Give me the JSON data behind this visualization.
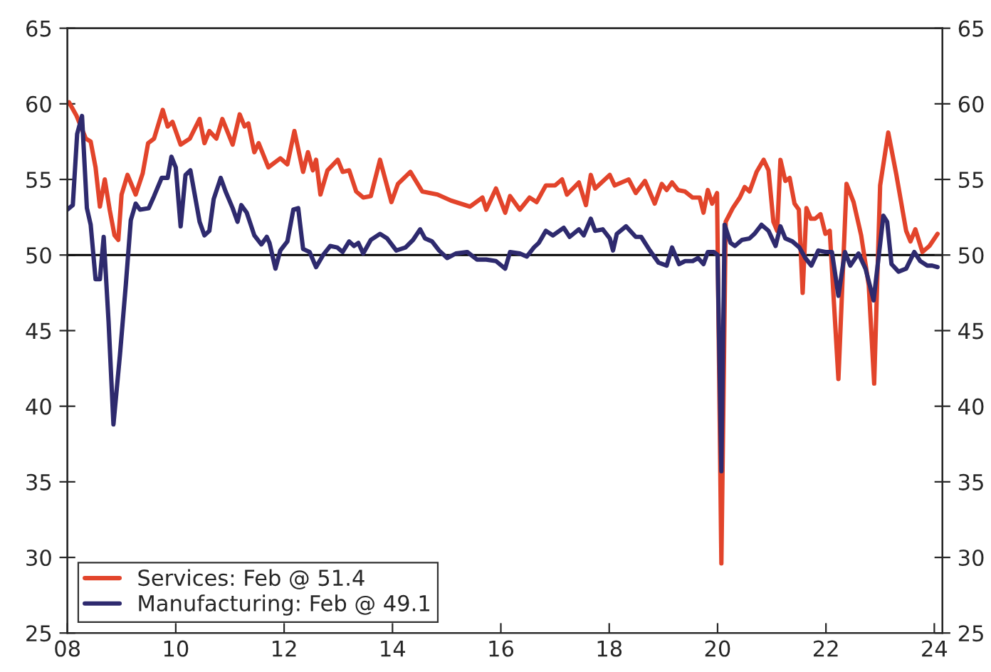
{
  "chart_data": {
    "type": "line",
    "xlim": [
      2008,
      2024.15
    ],
    "xticks": [
      {
        "value": 2008,
        "label": "08"
      },
      {
        "value": 2010,
        "label": "10"
      },
      {
        "value": 2012,
        "label": "12"
      },
      {
        "value": 2014,
        "label": "14"
      },
      {
        "value": 2016,
        "label": "16"
      },
      {
        "value": 2018,
        "label": "18"
      },
      {
        "value": 2020,
        "label": "20"
      },
      {
        "value": 2022,
        "label": "22"
      },
      {
        "value": 2024,
        "label": "24"
      }
    ],
    "ylim": [
      25,
      65
    ],
    "yticks": [
      25,
      30,
      35,
      40,
      45,
      50,
      55,
      60,
      65
    ],
    "y2lim": [
      25,
      65
    ],
    "y2ticks": [
      25,
      30,
      35,
      40,
      45,
      50,
      55,
      60,
      65
    ],
    "ref_lines": [
      {
        "axis": "y",
        "value": 50,
        "color": "#000000"
      }
    ],
    "grid": false,
    "legend": "bottom left",
    "marker": "none",
    "line_style": "solid",
    "series": [
      {
        "name": "Services: Feb @ 51.4",
        "color": "#e2442b",
        "x": [
          2008.03,
          2008.17,
          2008.34,
          2008.43,
          2008.52,
          2008.6,
          2008.69,
          2008.78,
          2008.87,
          2008.94,
          2009.0,
          2009.11,
          2009.26,
          2009.39,
          2009.49,
          2009.6,
          2009.76,
          2009.85,
          2009.94,
          2010.09,
          2010.26,
          2010.44,
          2010.53,
          2010.62,
          2010.75,
          2010.86,
          2011.05,
          2011.18,
          2011.27,
          2011.34,
          2011.45,
          2011.53,
          2011.71,
          2011.93,
          2012.06,
          2012.19,
          2012.35,
          2012.44,
          2012.53,
          2012.59,
          2012.67,
          2012.8,
          2012.99,
          2013.08,
          2013.2,
          2013.33,
          2013.46,
          2013.6,
          2013.77,
          2013.98,
          2014.1,
          2014.33,
          2014.55,
          2014.83,
          2015.08,
          2015.43,
          2015.66,
          2015.73,
          2015.91,
          2016.08,
          2016.17,
          2016.35,
          2016.53,
          2016.66,
          2016.83,
          2017.0,
          2017.13,
          2017.22,
          2017.44,
          2017.57,
          2017.66,
          2017.74,
          2018.01,
          2018.1,
          2018.36,
          2018.49,
          2018.66,
          2018.84,
          2018.97,
          2019.06,
          2019.16,
          2019.27,
          2019.4,
          2019.54,
          2019.67,
          2019.74,
          2019.82,
          2019.9,
          2019.99,
          2020.07,
          2020.15,
          2020.28,
          2020.41,
          2020.5,
          2020.59,
          2020.72,
          2020.85,
          2020.94,
          2021.03,
          2021.1,
          2021.16,
          2021.25,
          2021.33,
          2021.42,
          2021.5,
          2021.57,
          2021.64,
          2021.72,
          2021.8,
          2021.9,
          2021.99,
          2022.07,
          2022.23,
          2022.38,
          2022.51,
          2022.65,
          2022.79,
          2022.89,
          2023.0,
          2023.15,
          2023.3,
          2023.48,
          2023.56,
          2023.65,
          2023.78,
          2023.91,
          2024.06
        ],
        "values": [
          60.1,
          59.2,
          57.7,
          57.5,
          55.8,
          53.2,
          55.0,
          53.0,
          51.3,
          51.0,
          54.0,
          55.3,
          54.0,
          55.4,
          57.4,
          57.7,
          59.6,
          58.5,
          58.8,
          57.3,
          57.7,
          59.0,
          57.4,
          58.2,
          57.7,
          59.0,
          57.3,
          59.3,
          58.5,
          58.7,
          56.8,
          57.4,
          55.8,
          56.4,
          56.0,
          58.2,
          55.5,
          56.8,
          55.6,
          56.3,
          54.0,
          55.6,
          56.3,
          55.5,
          55.6,
          54.2,
          53.8,
          53.9,
          56.3,
          53.5,
          54.7,
          55.5,
          54.2,
          54.0,
          53.6,
          53.2,
          53.8,
          53.0,
          54.4,
          52.8,
          53.9,
          53.0,
          53.8,
          53.5,
          54.6,
          54.6,
          55.0,
          54.0,
          54.8,
          53.3,
          55.3,
          54.4,
          55.3,
          54.6,
          55.0,
          54.1,
          54.9,
          53.4,
          54.7,
          54.3,
          54.8,
          54.3,
          54.2,
          53.8,
          53.8,
          52.8,
          54.3,
          53.4,
          54.1,
          29.6,
          52.2,
          53.1,
          53.8,
          54.5,
          54.2,
          55.5,
          56.3,
          55.6,
          52.2,
          51.6,
          56.3,
          54.9,
          55.1,
          53.4,
          53.0,
          47.5,
          53.1,
          52.4,
          52.4,
          52.7,
          51.4,
          51.6,
          41.8,
          54.7,
          53.5,
          51.3,
          48.0,
          41.5,
          54.6,
          58.1,
          55.3,
          51.6,
          50.9,
          51.7,
          50.2,
          50.6,
          51.4
        ]
      },
      {
        "name": "Manufacturing: Feb @ 49.1",
        "color": "#2e2a6e",
        "x": [
          2008.0,
          2008.1,
          2008.18,
          2008.27,
          2008.36,
          2008.43,
          2008.52,
          2008.6,
          2008.67,
          2008.76,
          2008.85,
          2008.97,
          2009.08,
          2009.17,
          2009.26,
          2009.34,
          2009.5,
          2009.6,
          2009.74,
          2009.85,
          2009.92,
          2010.0,
          2010.09,
          2010.18,
          2010.27,
          2010.35,
          2010.44,
          2010.53,
          2010.62,
          2010.7,
          2010.83,
          2010.92,
          2011.05,
          2011.14,
          2011.21,
          2011.31,
          2011.45,
          2011.58,
          2011.68,
          2011.73,
          2011.84,
          2011.93,
          2012.06,
          2012.17,
          2012.26,
          2012.35,
          2012.47,
          2012.59,
          2012.72,
          2012.85,
          2012.98,
          2013.08,
          2013.2,
          2013.29,
          2013.37,
          2013.46,
          2013.6,
          2013.77,
          2013.9,
          2014.07,
          2014.24,
          2014.38,
          2014.51,
          2014.6,
          2014.73,
          2014.86,
          2015.01,
          2015.17,
          2015.38,
          2015.56,
          2015.73,
          2015.91,
          2016.08,
          2016.17,
          2016.35,
          2016.48,
          2016.61,
          2016.7,
          2016.83,
          2016.96,
          2017.16,
          2017.27,
          2017.44,
          2017.53,
          2017.66,
          2017.74,
          2017.88,
          2018.01,
          2018.07,
          2018.14,
          2018.31,
          2018.49,
          2018.59,
          2018.75,
          2018.91,
          2019.06,
          2019.16,
          2019.29,
          2019.4,
          2019.54,
          2019.64,
          2019.74,
          2019.82,
          2019.93,
          2020.0,
          2020.07,
          2020.13,
          2020.24,
          2020.32,
          2020.45,
          2020.59,
          2020.68,
          2020.81,
          2020.94,
          2021.07,
          2021.16,
          2021.25,
          2021.38,
          2021.51,
          2021.62,
          2021.73,
          2021.86,
          2021.99,
          2022.11,
          2022.23,
          2022.35,
          2022.45,
          2022.6,
          2022.73,
          2022.88,
          2023.06,
          2023.13,
          2023.21,
          2023.34,
          2023.48,
          2023.63,
          2023.74,
          2023.87,
          2023.96,
          2024.06
        ],
        "values": [
          53.0,
          53.3,
          58.0,
          59.2,
          53.1,
          52.0,
          48.4,
          48.4,
          51.2,
          45.6,
          38.8,
          43.4,
          48.1,
          52.3,
          53.4,
          53.0,
          53.1,
          53.9,
          55.1,
          55.1,
          56.5,
          55.8,
          51.9,
          55.3,
          55.6,
          54.0,
          52.2,
          51.3,
          51.6,
          53.7,
          55.1,
          54.2,
          53.1,
          52.2,
          53.3,
          52.8,
          51.3,
          50.7,
          51.2,
          50.8,
          49.1,
          50.3,
          50.9,
          53.0,
          53.1,
          50.4,
          50.2,
          49.2,
          50.0,
          50.6,
          50.5,
          50.2,
          50.9,
          50.6,
          50.8,
          50.1,
          51.0,
          51.4,
          51.1,
          50.3,
          50.5,
          51.0,
          51.7,
          51.1,
          50.9,
          50.3,
          49.8,
          50.1,
          50.2,
          49.7,
          49.7,
          49.6,
          49.1,
          50.2,
          50.1,
          49.9,
          50.5,
          50.8,
          51.6,
          51.3,
          51.8,
          51.2,
          51.7,
          51.3,
          52.4,
          51.6,
          51.7,
          51.1,
          50.3,
          51.4,
          51.9,
          51.2,
          51.2,
          50.3,
          49.5,
          49.3,
          50.5,
          49.4,
          49.6,
          49.6,
          49.8,
          49.4,
          50.2,
          50.2,
          50.0,
          35.7,
          52.0,
          50.8,
          50.6,
          51.0,
          51.1,
          51.4,
          52.0,
          51.6,
          50.6,
          51.9,
          51.1,
          50.9,
          50.5,
          49.8,
          49.3,
          50.3,
          50.2,
          50.2,
          47.3,
          50.2,
          49.3,
          50.1,
          49.1,
          47.0,
          52.6,
          52.2,
          49.4,
          48.9,
          49.1,
          50.2,
          49.6,
          49.3,
          49.3,
          49.2
        ]
      }
    ]
  }
}
